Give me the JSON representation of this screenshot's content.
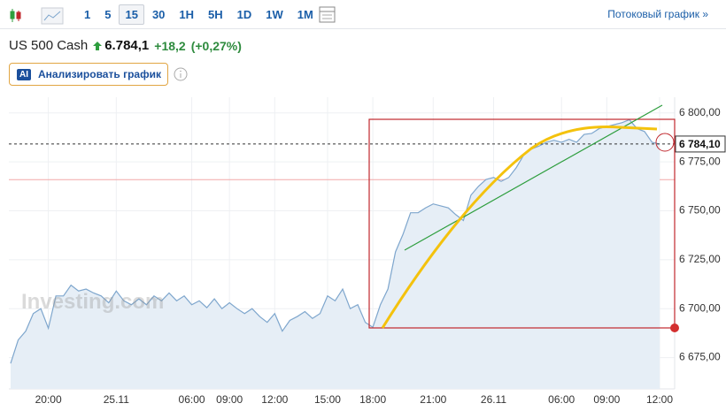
{
  "toolbar": {
    "intervals": [
      "1",
      "5",
      "15",
      "30",
      "1H",
      "5H",
      "1D",
      "1W",
      "1M"
    ],
    "active": "15",
    "stream_link": "Потоковый график »"
  },
  "quote": {
    "name": "US 500 Cash",
    "price": "6.784,1",
    "change": "+18,2",
    "change_percent": "(+0,27%)"
  },
  "ai_button": {
    "badge": "AI",
    "label": "Анализировать график"
  },
  "watermark": "Investing.com",
  "chart_data": {
    "type": "area",
    "color": "#7ea6cd",
    "fill": "#e6eef6",
    "values": [
      6672,
      6684,
      6688.5,
      6697.5,
      6700,
      6690,
      6706.5,
      6706.5,
      6712,
      6709,
      6710,
      6708,
      6706.5,
      6703,
      6709,
      6704,
      6702,
      6705,
      6702,
      6706.5,
      6704,
      6708,
      6704,
      6706.5,
      6702,
      6704,
      6700.5,
      6705,
      6700,
      6703,
      6700,
      6697.5,
      6700,
      6696,
      6693,
      6697.5,
      6688.5,
      6694,
      6696,
      6698.5,
      6695,
      6697.5,
      6706.5,
      6704,
      6710,
      6700,
      6702,
      6693,
      6690.5,
      6702,
      6710,
      6729,
      6738,
      6749,
      6749,
      6751.5,
      6753.5,
      6752.5,
      6751.5,
      6748,
      6745,
      6758,
      6762.5,
      6766,
      6767,
      6765,
      6767,
      6772,
      6778.5,
      6781.5,
      6783,
      6785,
      6786,
      6785,
      6786.5,
      6785,
      6789,
      6789.5,
      6792,
      6793,
      6794,
      6795,
      6796.5,
      6792,
      6790.5,
      6785,
      6784.1
    ],
    "xticks": [
      {
        "value": 5,
        "label": "20:00"
      },
      {
        "value": 14,
        "label": "25.11"
      },
      {
        "value": 24,
        "label": "06:00"
      },
      {
        "value": 29,
        "label": "09:00"
      },
      {
        "value": 35,
        "label": "12:00"
      },
      {
        "value": 42,
        "label": "15:00"
      },
      {
        "value": 48,
        "label": "18:00"
      },
      {
        "value": 56,
        "label": "21:00"
      },
      {
        "value": 64,
        "label": "26.11"
      },
      {
        "value": 73,
        "label": "06:00"
      },
      {
        "value": 79,
        "label": "09:00"
      },
      {
        "value": 86,
        "label": "12:00"
      }
    ],
    "ylim": [
      6659,
      6808
    ],
    "yticks": [
      {
        "value": 6675,
        "label": "6 675,00"
      },
      {
        "value": 6700,
        "label": "6 700,00"
      },
      {
        "value": 6725,
        "label": "6 725,00"
      },
      {
        "value": 6750,
        "label": "6 750,00"
      },
      {
        "value": 6775,
        "label": "6 775,00"
      },
      {
        "value": 6800,
        "label": "6 800,00"
      }
    ],
    "current_price": {
      "value": 6784.1,
      "label": "6 784,10"
    },
    "previous_close": 6765.9,
    "grid": true
  }
}
